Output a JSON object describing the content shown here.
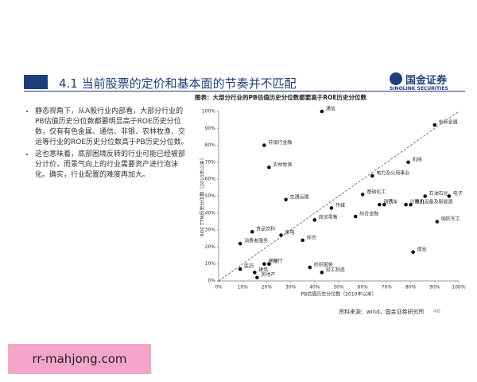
{
  "header": {
    "title": "4.1 当前股票的定价和基本面的节奏并不匹配",
    "logo_cn": "国金证券",
    "logo_en": "SINOLINK SECURITIES"
  },
  "bullets": [
    "静态视角下，从A股行业内部看，大部分行业的PB估值历史分位数都要明显高于ROE历史分位数，仅有有色金属、通信、非银、农林牧渔、交运等行业的ROE历史分位数高于PB历史分位数。",
    "这也意味着，底部困境反转的行业可能已经被部分计价，而景气向上的行业需要资产进行泡沫化。确实，行业配置的难度再加大。"
  ],
  "chart_data": {
    "type": "scatter",
    "title": "图表：大部分行业的PB估值历史分位数都要高于ROE历史分位数",
    "xlabel": "PB估值历史分位数（2010年以来）",
    "ylabel": "ROE TTM历史分位数（2010年以来）",
    "labels": [
      "通信",
      "有色金属",
      "非银行金融",
      "机械",
      "农林牧渔",
      "电力及公用事业",
      "交通运输",
      "基础化工",
      "石油石化",
      "电子",
      "钢铁",
      "汽车",
      "计算机",
      "电力设备及新能源",
      "传媒",
      "商贸零售",
      "综合金融",
      "国防军工",
      "食品饮料",
      "家电",
      "综合",
      "消费者服务",
      "煤炭",
      "医药",
      "建材",
      "银行",
      "建筑",
      "纺织服装",
      "轻工制造",
      "房地产"
    ],
    "x": [
      43,
      90,
      19,
      79,
      21,
      64,
      28,
      60,
      86,
      96,
      67,
      69,
      78,
      80,
      47,
      40,
      57,
      91,
      14,
      26,
      35,
      9,
      81,
      9,
      19,
      21,
      15,
      38,
      43,
      16
    ],
    "y": [
      100,
      92,
      80,
      70,
      67,
      62,
      48,
      51,
      50,
      50,
      45,
      45,
      45,
      45,
      43,
      36,
      38,
      35,
      29,
      27,
      24,
      22,
      17,
      7,
      10,
      10,
      5,
      8,
      5,
      2
    ],
    "color": "#111111",
    "xlim": [
      0,
      100
    ],
    "ylim": [
      0,
      100
    ],
    "xticks": [
      {
        "value": 0,
        "label": "0%"
      },
      {
        "value": 10,
        "label": "10%"
      },
      {
        "value": 20,
        "label": "20%"
      },
      {
        "value": 30,
        "label": "30%"
      },
      {
        "value": 40,
        "label": "40%"
      },
      {
        "value": 50,
        "label": "50%"
      },
      {
        "value": 60,
        "label": "60%"
      },
      {
        "value": 70,
        "label": "70%"
      },
      {
        "value": 80,
        "label": "80%"
      },
      {
        "value": 90,
        "label": "90%"
      },
      {
        "value": 100,
        "label": "100%"
      }
    ],
    "yticks": [
      {
        "value": 0,
        "label": "0%"
      },
      {
        "value": 10,
        "label": "10%"
      },
      {
        "value": 20,
        "label": "20%"
      },
      {
        "value": 30,
        "label": "30%"
      },
      {
        "value": 40,
        "label": "40%"
      },
      {
        "value": 50,
        "label": "50%"
      },
      {
        "value": 60,
        "label": "60%"
      },
      {
        "value": 70,
        "label": "70%"
      },
      {
        "value": 80,
        "label": "80%"
      },
      {
        "value": 90,
        "label": "90%"
      },
      {
        "value": 100,
        "label": "100%"
      }
    ]
  },
  "source": "资料来源：wind，国金证券研究所",
  "page_number": "46",
  "watermark": "rr-mahjong.com"
}
